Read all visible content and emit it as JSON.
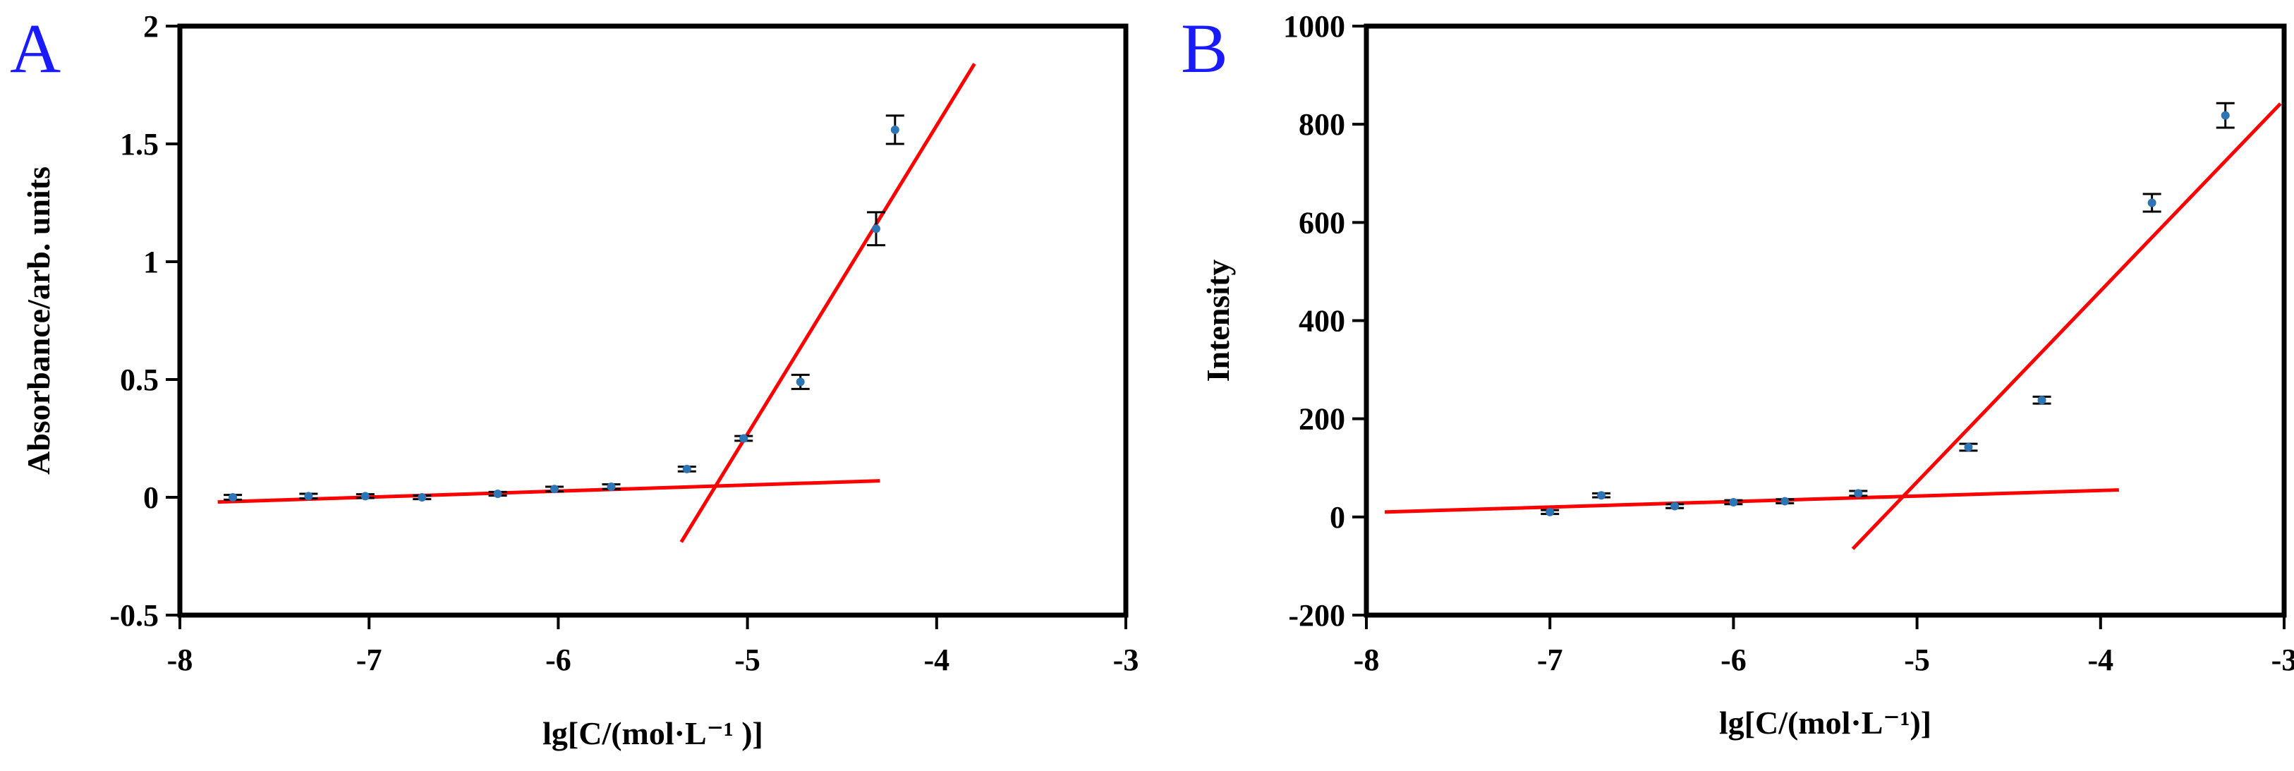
{
  "chart_data": [
    {
      "panel_label": "A",
      "type": "scatter",
      "xlabel": "lg[C/(mol·L⁻¹ )]",
      "ylabel": "Absorbance/arb. units",
      "xlim": [
        -8,
        -3
      ],
      "ylim": [
        -0.5,
        2
      ],
      "xticks": [
        {
          "value": -8,
          "label": "-8"
        },
        {
          "value": -7,
          "label": "-7"
        },
        {
          "value": -6,
          "label": "-6"
        },
        {
          "value": -5,
          "label": "-5"
        },
        {
          "value": -4,
          "label": "-4"
        },
        {
          "value": -3,
          "label": "-3"
        }
      ],
      "yticks": [
        {
          "value": -0.5,
          "label": "-0.5"
        },
        {
          "value": 0,
          "label": "0"
        },
        {
          "value": 0.5,
          "label": "0.5"
        },
        {
          "value": 1,
          "label": "1"
        },
        {
          "value": 1.5,
          "label": "1.5"
        },
        {
          "value": 2,
          "label": "2"
        }
      ],
      "grid": false,
      "series": [
        {
          "points": [
            {
              "x": -7.72,
              "y": 0.0,
              "err": 0.01
            },
            {
              "x": -7.32,
              "y": 0.005,
              "err": 0.01
            },
            {
              "x": -7.02,
              "y": 0.005,
              "err": 0.008
            },
            {
              "x": -6.72,
              "y": 0.0,
              "err": 0.008
            },
            {
              "x": -6.32,
              "y": 0.015,
              "err": 0.008
            },
            {
              "x": -6.02,
              "y": 0.035,
              "err": 0.01
            },
            {
              "x": -5.72,
              "y": 0.045,
              "err": 0.01
            },
            {
              "x": -5.32,
              "y": 0.12,
              "err": 0.01
            },
            {
              "x": -5.02,
              "y": 0.25,
              "err": 0.01
            },
            {
              "x": -4.72,
              "y": 0.49,
              "err": 0.03
            },
            {
              "x": -4.32,
              "y": 1.14,
              "err": 0.07
            },
            {
              "x": -4.22,
              "y": 1.56,
              "err": 0.06
            }
          ]
        }
      ],
      "fit_lines": [
        {
          "x": [
            -7.8,
            -4.3
          ],
          "y": [
            -0.02,
            0.07
          ]
        },
        {
          "x": [
            -5.35,
            -3.8
          ],
          "y": [
            -0.19,
            1.84
          ]
        }
      ],
      "colors": {
        "points": "#2e75b6",
        "fit": "#ff0000",
        "error": "#000000"
      }
    },
    {
      "panel_label": "B",
      "type": "scatter",
      "xlabel": "lg[C/(mol·L⁻¹)]",
      "ylabel": "Intensity",
      "xlim": [
        -8,
        -3
      ],
      "ylim": [
        -200,
        1000
      ],
      "xticks": [
        {
          "value": -8,
          "label": "-8"
        },
        {
          "value": -7,
          "label": "-7"
        },
        {
          "value": -6,
          "label": "-6"
        },
        {
          "value": -5,
          "label": "-5"
        },
        {
          "value": -4,
          "label": "-4"
        },
        {
          "value": -3,
          "label": "-3"
        }
      ],
      "yticks": [
        {
          "value": -200,
          "label": "-200"
        },
        {
          "value": 0,
          "label": "0"
        },
        {
          "value": 200,
          "label": "200"
        },
        {
          "value": 400,
          "label": "400"
        },
        {
          "value": 600,
          "label": "600"
        },
        {
          "value": 800,
          "label": "800"
        },
        {
          "value": 1000,
          "label": "1000"
        }
      ],
      "grid": false,
      "series": [
        {
          "points": [
            {
              "x": -7.0,
              "y": 10,
              "err": 4
            },
            {
              "x": -6.72,
              "y": 44,
              "err": 4
            },
            {
              "x": -6.32,
              "y": 22,
              "err": 4
            },
            {
              "x": -6.0,
              "y": 30,
              "err": 4
            },
            {
              "x": -5.72,
              "y": 32,
              "err": 4
            },
            {
              "x": -5.32,
              "y": 48,
              "err": 5
            },
            {
              "x": -4.72,
              "y": 142,
              "err": 7
            },
            {
              "x": -4.32,
              "y": 238,
              "err": 7
            },
            {
              "x": -3.72,
              "y": 640,
              "err": 18
            },
            {
              "x": -3.32,
              "y": 818,
              "err": 25
            }
          ]
        }
      ],
      "fit_lines": [
        {
          "x": [
            -7.9,
            -3.9
          ],
          "y": [
            10,
            55
          ]
        },
        {
          "x": [
            -5.35,
            -3.02
          ],
          "y": [
            -65,
            842
          ]
        }
      ],
      "colors": {
        "points": "#2e75b6",
        "fit": "#ff0000",
        "error": "#000000"
      }
    }
  ]
}
